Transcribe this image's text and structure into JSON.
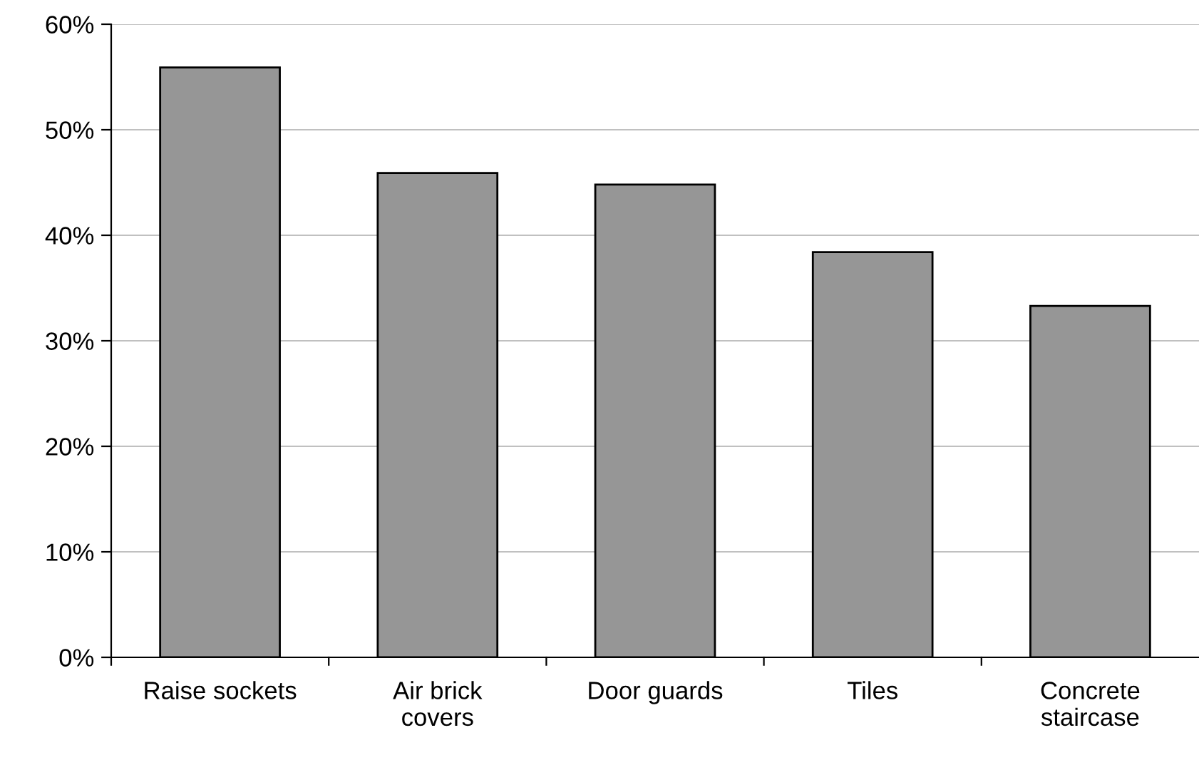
{
  "chart_data": {
    "type": "bar",
    "categories": [
      "Raise sockets",
      "Air brick\ncovers",
      "Door guards",
      "Tiles",
      "Concrete\nstaircase"
    ],
    "values": [
      55.9,
      45.9,
      44.8,
      38.4,
      33.3
    ],
    "color": "#969696",
    "ylim": [
      0,
      60
    ],
    "yticks": [
      {
        "value": 0,
        "label": "0%"
      },
      {
        "value": 10,
        "label": "10%"
      },
      {
        "value": 20,
        "label": "20%"
      },
      {
        "value": 30,
        "label": "30%"
      },
      {
        "value": 40,
        "label": "40%"
      },
      {
        "value": 50,
        "label": "50%"
      },
      {
        "value": 60,
        "label": "60%"
      }
    ],
    "grid": "y",
    "legend": false
  }
}
